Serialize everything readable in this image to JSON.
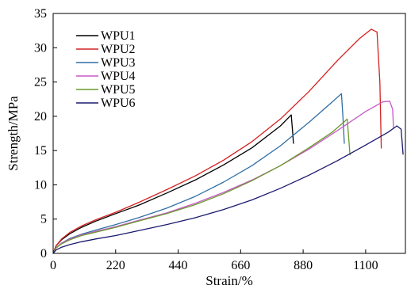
{
  "chart_data": {
    "type": "line",
    "title": "",
    "xlabel": "Strain/%",
    "ylabel": "Strength/MPa",
    "xlim": [
      0,
      1240
    ],
    "ylim": [
      0,
      35
    ],
    "xticks": [
      0,
      220,
      440,
      660,
      880,
      1100
    ],
    "yticks": [
      0,
      5,
      10,
      15,
      20,
      25,
      30,
      35
    ],
    "grid": false,
    "legend": "top-left",
    "series": [
      {
        "name": "WPU1",
        "color": "#000000",
        "x": [
          0,
          10,
          30,
          60,
          100,
          150,
          220,
          300,
          400,
          500,
          600,
          700,
          800,
          838,
          843,
          846
        ],
        "y": [
          0,
          1.1,
          2.0,
          2.9,
          3.8,
          4.7,
          5.8,
          7.0,
          8.8,
          10.7,
          12.9,
          15.4,
          18.6,
          20.2,
          17.8,
          16.0
        ]
      },
      {
        "name": "WPU2",
        "color": "#d42020",
        "x": [
          0,
          10,
          30,
          60,
          100,
          150,
          220,
          300,
          400,
          500,
          600,
          700,
          800,
          900,
          1000,
          1080,
          1120,
          1140,
          1150,
          1155
        ],
        "y": [
          0,
          1.1,
          2.1,
          3.1,
          4.0,
          4.9,
          6.0,
          7.4,
          9.3,
          11.3,
          13.6,
          16.3,
          19.6,
          23.6,
          28.1,
          31.4,
          32.7,
          32.3,
          25.0,
          15.3
        ]
      },
      {
        "name": "WPU3",
        "color": "#2f6fa6",
        "x": [
          0,
          10,
          30,
          60,
          100,
          150,
          220,
          300,
          400,
          500,
          600,
          700,
          800,
          900,
          980,
          1015,
          1020,
          1025
        ],
        "y": [
          0,
          0.8,
          1.5,
          2.2,
          2.8,
          3.4,
          4.2,
          5.2,
          6.6,
          8.3,
          10.4,
          12.8,
          15.7,
          19.1,
          22.0,
          23.3,
          20.0,
          16.0
        ]
      },
      {
        "name": "WPU4",
        "color": "#c858c8",
        "x": [
          0,
          10,
          30,
          60,
          100,
          150,
          220,
          300,
          400,
          500,
          600,
          700,
          800,
          900,
          1000,
          1100,
          1160,
          1185,
          1195,
          1198
        ],
        "y": [
          0,
          0.8,
          1.5,
          2.1,
          2.7,
          3.2,
          3.9,
          4.8,
          5.9,
          7.3,
          8.9,
          10.7,
          12.8,
          15.2,
          17.9,
          20.7,
          22.1,
          22.2,
          21.0,
          18.3
        ]
      },
      {
        "name": "WPU5",
        "color": "#6a9a2a",
        "x": [
          0,
          10,
          30,
          60,
          100,
          150,
          220,
          300,
          400,
          500,
          600,
          700,
          800,
          900,
          980,
          1025,
          1035,
          1040,
          1045
        ],
        "y": [
          0,
          0.8,
          1.4,
          2.0,
          2.6,
          3.1,
          3.8,
          4.7,
          5.8,
          7.1,
          8.7,
          10.6,
          12.8,
          15.4,
          17.6,
          19.2,
          19.6,
          17.0,
          14.3
        ]
      },
      {
        "name": "WPU6",
        "color": "#1a1a6e",
        "x": [
          0,
          10,
          30,
          60,
          100,
          150,
          220,
          300,
          400,
          500,
          600,
          700,
          800,
          900,
          1000,
          1100,
          1180,
          1210,
          1225,
          1232
        ],
        "y": [
          0,
          0.5,
          0.9,
          1.3,
          1.7,
          2.1,
          2.6,
          3.3,
          4.2,
          5.2,
          6.4,
          7.8,
          9.5,
          11.4,
          13.5,
          15.8,
          17.7,
          18.6,
          18.1,
          14.4
        ]
      }
    ]
  }
}
